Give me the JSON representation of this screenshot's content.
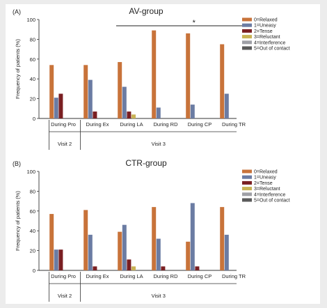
{
  "colors": {
    "relaxed": "#c8733a",
    "uneasy": "#6b7ca3",
    "tense": "#7a1f22",
    "reluctant": "#c8b255",
    "interference": "#9fa0a6",
    "out_of_contact": "#5a5a5a"
  },
  "chart_data": [
    {
      "type": "bar",
      "panel_label": "(A)",
      "title": "AV-group",
      "ylabel": "Frequency of patients (%)",
      "ylim": [
        0,
        100
      ],
      "yticks": [
        "0",
        "20",
        "40",
        "60",
        "80",
        "100"
      ],
      "categories": [
        "During Pro",
        "During Ex",
        "During LA",
        "During RD",
        "During CP",
        "During TR"
      ],
      "visit_groups": [
        {
          "label": "Visit 2",
          "span": [
            0,
            0
          ]
        },
        {
          "label": "Visit 3",
          "span": [
            1,
            5
          ]
        }
      ],
      "significance": {
        "label": "*",
        "span": [
          2,
          5
        ]
      },
      "legend_position": "right",
      "series": [
        {
          "name": "0=Relaxed",
          "color_key": "relaxed",
          "values": [
            54,
            54,
            57,
            89,
            86,
            75
          ]
        },
        {
          "name": "1=Uneasy",
          "color_key": "uneasy",
          "values": [
            21,
            39,
            32,
            11,
            14,
            25
          ]
        },
        {
          "name": "2=Tense",
          "color_key": "tense",
          "values": [
            25,
            7,
            7,
            0,
            0,
            0
          ]
        },
        {
          "name": "3=Reluctant",
          "color_key": "reluctant",
          "values": [
            0,
            0,
            4,
            0,
            0,
            0
          ]
        },
        {
          "name": "4=Interference",
          "color_key": "interference",
          "values": [
            0,
            0,
            0,
            0,
            0,
            0
          ]
        },
        {
          "name": "5=Out of contact",
          "color_key": "out_of_contact",
          "values": [
            0,
            0,
            0,
            0,
            0,
            0
          ]
        }
      ]
    },
    {
      "type": "bar",
      "panel_label": "(B)",
      "title": "CTR-group",
      "ylabel": "Frequency of patients (%)",
      "ylim": [
        0,
        100
      ],
      "yticks": [
        "0",
        "20",
        "40",
        "60",
        "80",
        "100"
      ],
      "categories": [
        "During Pro",
        "During Ex",
        "During LA",
        "During RD",
        "During CP",
        "During TR"
      ],
      "visit_groups": [
        {
          "label": "Visit 2",
          "span": [
            0,
            0
          ]
        },
        {
          "label": "Visit 3",
          "span": [
            1,
            5
          ]
        }
      ],
      "legend_position": "right",
      "series": [
        {
          "name": "0=Relaxed",
          "color_key": "relaxed",
          "values": [
            57,
            61,
            39,
            64,
            29,
            64
          ]
        },
        {
          "name": "1=Uneasy",
          "color_key": "uneasy",
          "values": [
            21,
            36,
            46,
            32,
            68,
            36
          ]
        },
        {
          "name": "2=Tense",
          "color_key": "tense",
          "values": [
            21,
            4,
            11,
            4,
            4,
            0
          ]
        },
        {
          "name": "3=Reluctant",
          "color_key": "reluctant",
          "values": [
            0,
            0,
            4,
            0,
            0,
            0
          ]
        },
        {
          "name": "4=Interference",
          "color_key": "interference",
          "values": [
            0,
            0,
            0,
            0,
            0,
            0
          ]
        },
        {
          "name": "5=Out of contact",
          "color_key": "out_of_contact",
          "values": [
            0,
            0,
            0,
            0,
            0,
            0
          ]
        }
      ]
    }
  ]
}
